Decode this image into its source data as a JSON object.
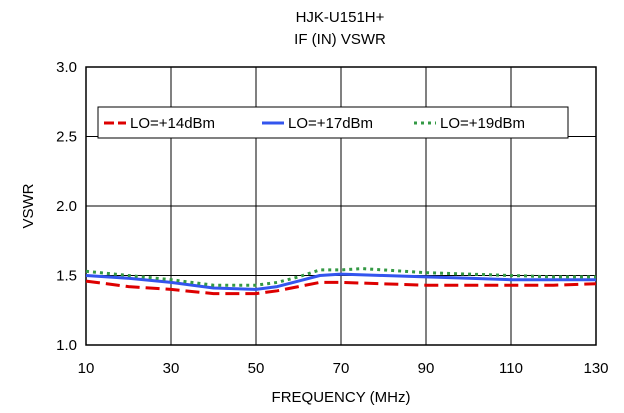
{
  "chart_data": {
    "type": "line",
    "title": "HJK-U151H+",
    "subtitle": "IF (IN) VSWR",
    "xlabel": "FREQUENCY (MHz)",
    "ylabel": "VSWR",
    "xlim": [
      10,
      130
    ],
    "ylim": [
      1.0,
      3.0
    ],
    "xticks": [
      10,
      30,
      50,
      70,
      90,
      110,
      130
    ],
    "yticks": [
      "1.0",
      "1.5",
      "2.0",
      "2.5",
      "3.0"
    ],
    "yticks_values": [
      1.0,
      1.5,
      2.0,
      2.5,
      3.0
    ],
    "grid": true,
    "legend_position": "top",
    "series": [
      {
        "name": "LO=+14dBm",
        "color": "#dd0000",
        "dash": "dashed",
        "x": [
          10,
          20,
          30,
          40,
          50,
          55,
          60,
          65,
          70,
          80,
          90,
          100,
          110,
          120,
          130
        ],
        "y": [
          1.46,
          1.42,
          1.4,
          1.37,
          1.37,
          1.39,
          1.42,
          1.45,
          1.45,
          1.44,
          1.43,
          1.43,
          1.43,
          1.43,
          1.44
        ]
      },
      {
        "name": "LO=+17dBm",
        "color": "#3355ee",
        "dash": "solid",
        "x": [
          10,
          20,
          30,
          40,
          50,
          55,
          60,
          65,
          70,
          80,
          90,
          100,
          110,
          120,
          130
        ],
        "y": [
          1.5,
          1.48,
          1.45,
          1.41,
          1.4,
          1.42,
          1.46,
          1.5,
          1.51,
          1.5,
          1.49,
          1.48,
          1.47,
          1.47,
          1.47
        ]
      },
      {
        "name": "LO=+19dBm",
        "color": "#339944",
        "dash": "dotted",
        "x": [
          10,
          20,
          30,
          40,
          50,
          55,
          60,
          65,
          70,
          75,
          80,
          90,
          100,
          110,
          120,
          130
        ],
        "y": [
          1.53,
          1.5,
          1.47,
          1.43,
          1.43,
          1.45,
          1.49,
          1.54,
          1.54,
          1.55,
          1.54,
          1.52,
          1.51,
          1.5,
          1.49,
          1.49
        ]
      }
    ]
  }
}
